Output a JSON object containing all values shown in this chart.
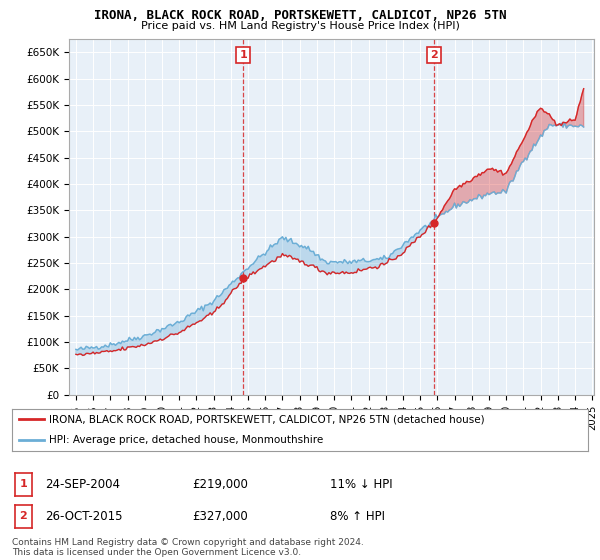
{
  "title": "IRONA, BLACK ROCK ROAD, PORTSKEWETT, CALDICOT, NP26 5TN",
  "subtitle": "Price paid vs. HM Land Registry's House Price Index (HPI)",
  "legend_line1": "IRONA, BLACK ROCK ROAD, PORTSKEWETT, CALDICOT, NP26 5TN (detached house)",
  "legend_line2": "HPI: Average price, detached house, Monmouthshire",
  "footer": "Contains HM Land Registry data © Crown copyright and database right 2024.\nThis data is licensed under the Open Government Licence v3.0.",
  "transaction1_date": "24-SEP-2004",
  "transaction1_price": 219000,
  "transaction1_hpi": "11% ↓ HPI",
  "transaction2_date": "26-OCT-2015",
  "transaction2_price": 327000,
  "transaction2_hpi": "8% ↑ HPI",
  "ylim_min": 0,
  "ylim_max": 675000,
  "yticks": [
    0,
    50000,
    100000,
    150000,
    200000,
    250000,
    300000,
    350000,
    400000,
    450000,
    500000,
    550000,
    600000,
    650000
  ],
  "ytick_labels": [
    "£0",
    "£50K",
    "£100K",
    "£150K",
    "£200K",
    "£250K",
    "£300K",
    "£350K",
    "£400K",
    "£450K",
    "£500K",
    "£550K",
    "£600K",
    "£650K"
  ],
  "hpi_color": "#6baed6",
  "price_color": "#d62728",
  "dashed_color": "#d62728",
  "plot_bg": "#e8f0f8",
  "transaction1_x": 2004.73,
  "transaction2_x": 2015.82,
  "hpi_key_years": [
    1995,
    1997,
    1999,
    2001,
    2003,
    2005,
    2007,
    2008.5,
    2009.5,
    2011,
    2013,
    2015,
    2017,
    2019,
    2020,
    2021,
    2022.5,
    2024.5
  ],
  "hpi_key_vals": [
    85000,
    95000,
    112000,
    138000,
    178000,
    242000,
    298000,
    278000,
    252000,
    252000,
    258000,
    312000,
    358000,
    382000,
    386000,
    445000,
    512000,
    510000
  ],
  "price_key_years": [
    1995,
    1997,
    1999,
    2001,
    2003,
    2004.73,
    2005.5,
    2007,
    2008.5,
    2009.5,
    2011,
    2013,
    2014,
    2015.82,
    2017,
    2019,
    2020,
    2021,
    2022,
    2023,
    2024,
    2024.5
  ],
  "price_key_vals": [
    75000,
    82000,
    95000,
    118000,
    155000,
    219000,
    235000,
    265000,
    248000,
    232000,
    232000,
    248000,
    270000,
    327000,
    390000,
    430000,
    420000,
    485000,
    548000,
    512000,
    522000,
    582000
  ],
  "xtick_years": [
    1995,
    1996,
    1997,
    1998,
    1999,
    2000,
    2001,
    2002,
    2003,
    2004,
    2005,
    2006,
    2007,
    2008,
    2009,
    2010,
    2011,
    2012,
    2013,
    2014,
    2015,
    2016,
    2017,
    2018,
    2019,
    2020,
    2021,
    2022,
    2023,
    2024,
    2025
  ]
}
